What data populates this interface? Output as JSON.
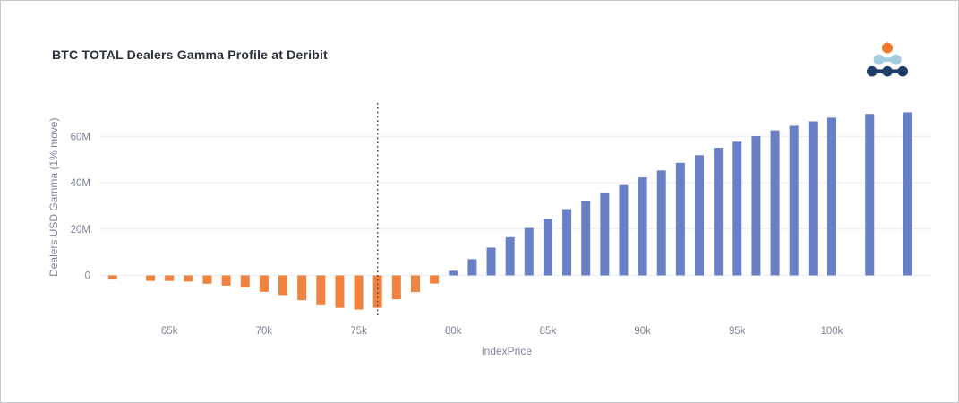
{
  "header": {
    "title": "BTC TOTAL Dealers Gamma Profile at Deribit",
    "logo": {
      "name": "amberdata-logo",
      "colors": {
        "orange": "#f0792a",
        "light_blue": "#a5cde1",
        "navy": "#1d3c6a"
      }
    }
  },
  "chart_data": {
    "type": "bar",
    "title": "BTC TOTAL Dealers Gamma Profile at Deribit",
    "xlabel": "indexPrice",
    "ylabel": "Dealers USD Gamma (1% move)",
    "x": [
      62,
      64,
      65,
      66,
      67,
      68,
      69,
      70,
      71,
      72,
      73,
      74,
      75,
      76,
      77,
      78,
      79,
      80,
      81,
      82,
      83,
      84,
      85,
      86,
      87,
      88,
      89,
      90,
      91,
      92,
      93,
      94,
      95,
      96,
      97,
      98,
      99,
      100,
      102,
      104
    ],
    "values": [
      -1.8,
      -2.4,
      -2.4,
      -2.7,
      -3.6,
      -4.4,
      -5.2,
      -7.1,
      -8.5,
      -10.7,
      -12.9,
      -14.0,
      -14.7,
      -14.0,
      -10.3,
      -7.2,
      -3.5,
      2.0,
      7.0,
      12.0,
      16.5,
      20.5,
      24.5,
      28.6,
      32.2,
      35.5,
      39.0,
      42.3,
      45.3,
      48.6,
      51.9,
      55.1,
      57.7,
      60.1,
      62.6,
      64.6,
      66.5,
      68.1,
      69.7,
      70.4
    ],
    "values_unit": "M",
    "x_tick_unit": "k",
    "x_ticks": [
      {
        "v": 65,
        "label": "65k"
      },
      {
        "v": 70,
        "label": "70k"
      },
      {
        "v": 75,
        "label": "75k"
      },
      {
        "v": 80,
        "label": "80k"
      },
      {
        "v": 85,
        "label": "85k"
      },
      {
        "v": 90,
        "label": "90k"
      },
      {
        "v": 95,
        "label": "95k"
      },
      {
        "v": 100,
        "label": "100k"
      }
    ],
    "y_ticks": [
      {
        "v": 0,
        "label": "0"
      },
      {
        "v": 20,
        "label": "20M"
      },
      {
        "v": 40,
        "label": "40M"
      },
      {
        "v": 60,
        "label": "60M"
      }
    ],
    "vline": {
      "x": 76,
      "style": "dotted"
    },
    "xlim": [
      61.3,
      105.3
    ],
    "ylim": [
      -17.6,
      75.2
    ],
    "grid": true,
    "legend": false,
    "colors": {
      "positive": "#6a80c6",
      "negative": "#ef833f",
      "gridline": "#e9ecf4",
      "tick_text": "#7c8493",
      "vline": "#4d5158"
    }
  }
}
